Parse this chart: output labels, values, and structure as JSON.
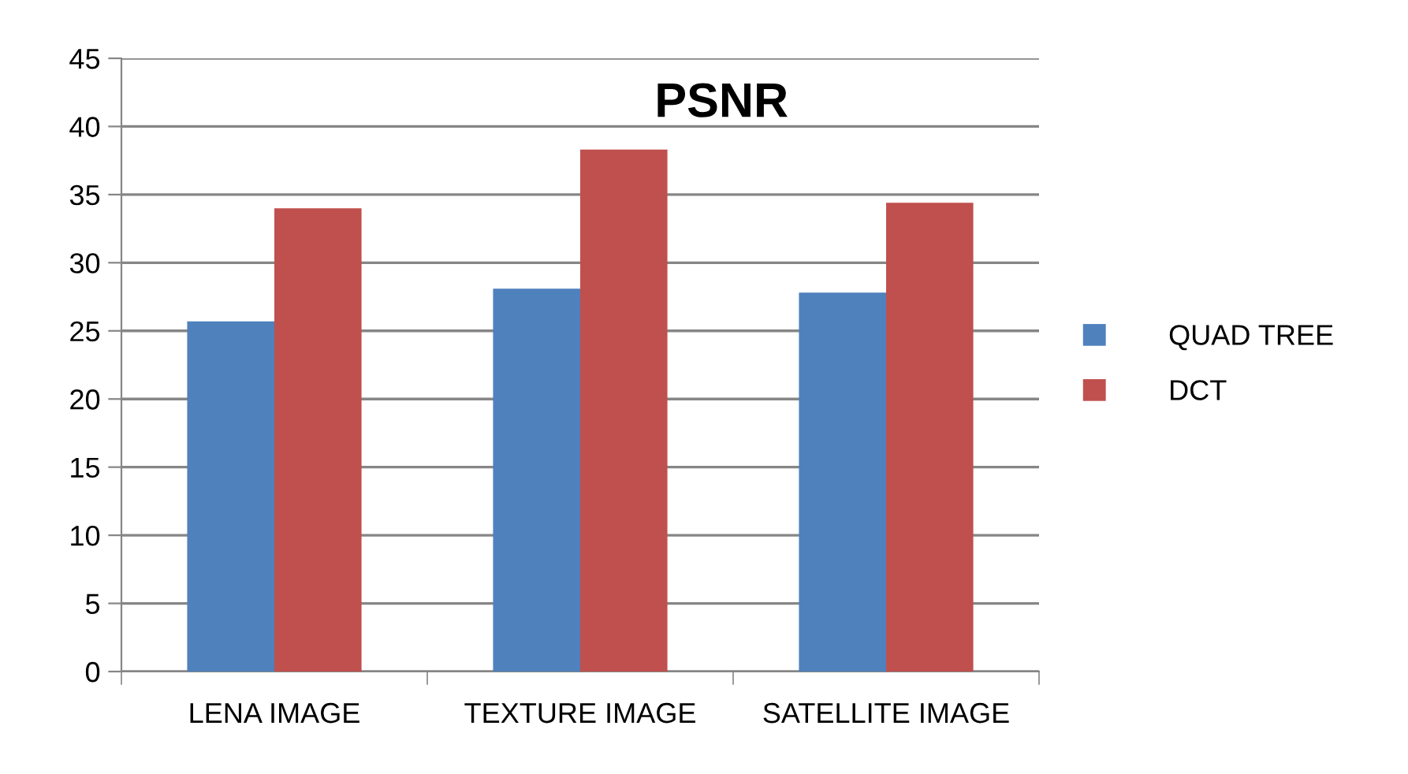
{
  "chart_data": {
    "type": "bar",
    "title": "PSNR",
    "categories": [
      "LENA IMAGE",
      "TEXTURE IMAGE",
      "SATELLITE IMAGE"
    ],
    "series": [
      {
        "name": "QUAD TREE",
        "color": "#4f81bd",
        "values": [
          25.7,
          28.1,
          27.8
        ]
      },
      {
        "name": "DCT",
        "color": "#c0504d",
        "values": [
          34.0,
          38.3,
          34.4
        ]
      }
    ],
    "ylim": [
      0,
      45
    ],
    "yticks": [
      0,
      5,
      10,
      15,
      20,
      25,
      30,
      35,
      40,
      45
    ],
    "grid": "y",
    "legend": "right"
  }
}
